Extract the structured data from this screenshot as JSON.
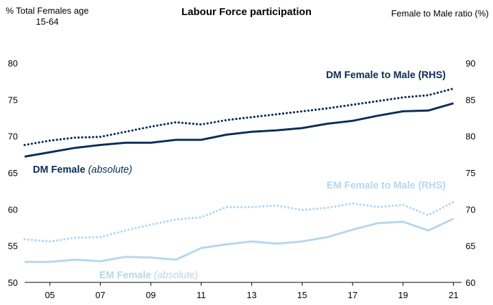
{
  "chart_data": {
    "type": "line",
    "title": "Labour Force participation",
    "ylabel_left": "% Total Females age 15-64",
    "ylabel_right": "Female to Male ratio (%)",
    "x": [
      2004,
      2005,
      2006,
      2007,
      2008,
      2009,
      2010,
      2011,
      2012,
      2013,
      2014,
      2015,
      2016,
      2017,
      2018,
      2019,
      2020,
      2021
    ],
    "xtick_values": [
      2005,
      2007,
      2009,
      2011,
      2013,
      2015,
      2017,
      2019,
      2021
    ],
    "xtick_labels": [
      "05",
      "07",
      "09",
      "11",
      "13",
      "15",
      "17",
      "19",
      "21"
    ],
    "xlim": [
      2004,
      2021.1
    ],
    "ylim_left": [
      50,
      80
    ],
    "ylim_right": [
      60,
      90
    ],
    "yticks_left": [
      "50",
      "55",
      "60",
      "65",
      "70",
      "75",
      "80"
    ],
    "yticks_right": [
      "60",
      "65",
      "70",
      "75",
      "80",
      "85",
      "90"
    ],
    "series": [
      {
        "name": "DM Female",
        "name_suffix": "(absolute)",
        "axis": "left",
        "style": "solid",
        "color": "#0b2d56",
        "values": [
          67.2,
          67.8,
          68.4,
          68.8,
          69.1,
          69.1,
          69.5,
          69.5,
          70.2,
          70.6,
          70.8,
          71.1,
          71.7,
          72.1,
          72.8,
          73.4,
          73.5,
          74.5
        ]
      },
      {
        "name": "DM Female to Male (RHS)",
        "name_suffix": "",
        "axis": "right",
        "style": "dotted",
        "color": "#0b2d56",
        "values": [
          78.8,
          79.4,
          79.8,
          79.9,
          80.6,
          81.3,
          81.9,
          81.6,
          82.2,
          82.6,
          83.0,
          83.4,
          83.8,
          84.3,
          84.8,
          85.3,
          85.6,
          86.5
        ]
      },
      {
        "name": "EM Female",
        "name_suffix": "(absolute)",
        "axis": "left",
        "style": "solid",
        "color": "#b5d7ee",
        "values": [
          52.8,
          52.8,
          53.1,
          52.9,
          53.5,
          53.4,
          53.1,
          54.7,
          55.2,
          55.6,
          55.3,
          55.6,
          56.2,
          57.2,
          58.1,
          58.3,
          57.1,
          58.7
        ]
      },
      {
        "name": "EM Female to Male (RHS)",
        "name_suffix": "",
        "axis": "right",
        "style": "dotted",
        "color": "#b5d7ee",
        "values": [
          65.9,
          65.6,
          66.1,
          66.2,
          67.1,
          67.9,
          68.6,
          68.9,
          70.3,
          70.3,
          70.5,
          69.9,
          70.2,
          70.8,
          70.3,
          70.6,
          69.2,
          71.0
        ]
      }
    ],
    "colors": {
      "dm": "#0b2d56",
      "em": "#b5d7ee",
      "axis": "#000000"
    }
  }
}
